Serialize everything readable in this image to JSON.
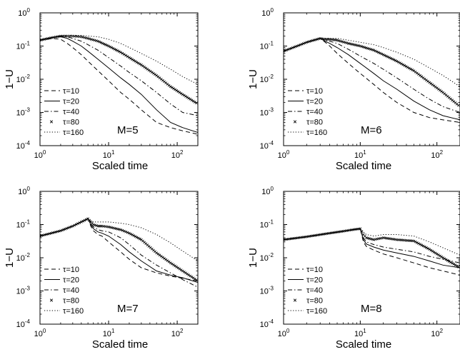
{
  "chart_data": [
    {
      "type": "line",
      "panel_label": "M=5",
      "xlabel": "Scaled time",
      "ylabel": "1−U",
      "xscale": "log",
      "yscale": "log",
      "xlim": [
        1,
        200
      ],
      "ylim": [
        0.0001,
        1
      ],
      "xticks": [
        "10^0",
        "10^1",
        "10^2"
      ],
      "yticks": [
        "10^-4",
        "10^-3",
        "10^-2",
        "10^-1",
        "10^0"
      ],
      "legend": "bottom-left",
      "series": [
        {
          "name": "τ=10",
          "style": "dashed",
          "x": [
            1,
            1.5,
            2,
            2.5,
            3,
            4,
            5,
            7,
            10,
            15,
            20,
            30,
            50,
            80,
            120,
            200
          ],
          "y": [
            0.15,
            0.17,
            0.16,
            0.12,
            0.09,
            0.055,
            0.035,
            0.018,
            0.009,
            0.004,
            0.0025,
            0.0012,
            0.0005,
            0.00035,
            0.00028,
            0.00022
          ]
        },
        {
          "name": "τ=20",
          "style": "solid",
          "x": [
            1,
            1.5,
            2,
            2.5,
            3,
            4,
            5,
            7,
            10,
            15,
            20,
            30,
            50,
            80,
            120,
            200
          ],
          "y": [
            0.15,
            0.18,
            0.19,
            0.17,
            0.14,
            0.1,
            0.07,
            0.04,
            0.022,
            0.011,
            0.007,
            0.0035,
            0.0012,
            0.0005,
            0.00035,
            0.00025
          ]
        },
        {
          "name": "τ=40",
          "style": "dashdot",
          "x": [
            1,
            1.5,
            2,
            2.5,
            3,
            4,
            5,
            7,
            10,
            15,
            20,
            30,
            50,
            80,
            120,
            200
          ],
          "y": [
            0.15,
            0.18,
            0.2,
            0.19,
            0.17,
            0.14,
            0.11,
            0.075,
            0.045,
            0.025,
            0.016,
            0.009,
            0.004,
            0.0018,
            0.001,
            0.0008
          ]
        },
        {
          "name": "τ=80",
          "style": "markers",
          "x": [
            1,
            1.5,
            2,
            2.5,
            3,
            4,
            5,
            7,
            10,
            15,
            20,
            30,
            50,
            80,
            120,
            200
          ],
          "y": [
            0.15,
            0.18,
            0.2,
            0.2,
            0.2,
            0.19,
            0.17,
            0.14,
            0.1,
            0.065,
            0.045,
            0.027,
            0.013,
            0.006,
            0.0035,
            0.0018
          ]
        },
        {
          "name": "τ=160",
          "style": "dotted",
          "x": [
            1,
            1.5,
            2,
            2.5,
            3,
            4,
            5,
            7,
            10,
            15,
            20,
            30,
            50,
            80,
            120,
            200
          ],
          "y": [
            0.15,
            0.18,
            0.2,
            0.21,
            0.21,
            0.21,
            0.2,
            0.19,
            0.16,
            0.12,
            0.09,
            0.06,
            0.035,
            0.02,
            0.012,
            0.007
          ]
        }
      ]
    },
    {
      "type": "line",
      "panel_label": "M=6",
      "xlabel": "Scaled time",
      "ylabel": "1−U",
      "xscale": "log",
      "yscale": "log",
      "xlim": [
        1,
        200
      ],
      "ylim": [
        0.0001,
        1
      ],
      "xticks": [
        "10^0",
        "10^1",
        "10^2"
      ],
      "yticks": [
        "10^-4",
        "10^-3",
        "10^-2",
        "10^-1",
        "10^0"
      ],
      "legend": "bottom-left",
      "series": [
        {
          "name": "τ=10",
          "style": "dashed",
          "x": [
            1,
            1.5,
            2,
            3,
            3.5,
            4,
            5,
            7,
            10,
            15,
            20,
            30,
            50,
            80,
            120,
            200
          ],
          "y": [
            0.07,
            0.1,
            0.13,
            0.17,
            0.13,
            0.1,
            0.06,
            0.03,
            0.015,
            0.007,
            0.004,
            0.002,
            0.001,
            0.0007,
            0.0006,
            0.0005
          ]
        },
        {
          "name": "τ=20",
          "style": "solid",
          "x": [
            1,
            1.5,
            2,
            3,
            3.5,
            4,
            5,
            7,
            10,
            15,
            20,
            30,
            50,
            80,
            120,
            200
          ],
          "y": [
            0.07,
            0.1,
            0.13,
            0.17,
            0.14,
            0.12,
            0.09,
            0.055,
            0.03,
            0.015,
            0.009,
            0.005,
            0.0022,
            0.0012,
            0.0008,
            0.0006
          ]
        },
        {
          "name": "τ=40",
          "style": "dashdot",
          "x": [
            1,
            1.5,
            2,
            3,
            3.5,
            4,
            5,
            7,
            10,
            15,
            20,
            30,
            50,
            80,
            120,
            200
          ],
          "y": [
            0.07,
            0.1,
            0.13,
            0.17,
            0.15,
            0.14,
            0.12,
            0.08,
            0.05,
            0.03,
            0.02,
            0.011,
            0.005,
            0.0025,
            0.0015,
            0.001
          ]
        },
        {
          "name": "τ=80",
          "style": "markers",
          "x": [
            1,
            1.5,
            2,
            3,
            3.5,
            4,
            5,
            7,
            10,
            15,
            20,
            30,
            50,
            80,
            120,
            200
          ],
          "y": [
            0.07,
            0.1,
            0.13,
            0.17,
            0.16,
            0.16,
            0.15,
            0.12,
            0.1,
            0.075,
            0.055,
            0.035,
            0.018,
            0.008,
            0.004,
            0.0015
          ]
        },
        {
          "name": "τ=160",
          "style": "dotted",
          "x": [
            1,
            1.5,
            2,
            3,
            3.5,
            4,
            5,
            7,
            10,
            15,
            20,
            30,
            50,
            80,
            120,
            200
          ],
          "y": [
            0.07,
            0.1,
            0.13,
            0.17,
            0.17,
            0.17,
            0.17,
            0.15,
            0.13,
            0.11,
            0.09,
            0.065,
            0.04,
            0.022,
            0.013,
            0.006
          ]
        }
      ]
    },
    {
      "type": "line",
      "panel_label": "M=7",
      "xlabel": "Scaled time",
      "ylabel": "1−U",
      "xscale": "log",
      "yscale": "log",
      "xlim": [
        1,
        200
      ],
      "ylim": [
        0.0001,
        1
      ],
      "xticks": [
        "10^0",
        "10^1",
        "10^2"
      ],
      "yticks": [
        "10^-4",
        "10^-3",
        "10^-2",
        "10^-1",
        "10^0"
      ],
      "legend": "bottom-left",
      "series": [
        {
          "name": "τ=10",
          "style": "dashed",
          "x": [
            1,
            2,
            3,
            4,
            5,
            5.5,
            6,
            7,
            8,
            10,
            15,
            20,
            30,
            50,
            80,
            120,
            200
          ],
          "y": [
            0.045,
            0.065,
            0.09,
            0.12,
            0.15,
            0.09,
            0.065,
            0.05,
            0.045,
            0.03,
            0.015,
            0.009,
            0.005,
            0.0035,
            0.0028,
            0.0024,
            0.002
          ]
        },
        {
          "name": "τ=20",
          "style": "solid",
          "x": [
            1,
            2,
            3,
            4,
            5,
            5.5,
            6,
            7,
            8,
            10,
            15,
            20,
            30,
            50,
            80,
            120,
            200
          ],
          "y": [
            0.045,
            0.065,
            0.09,
            0.12,
            0.15,
            0.1,
            0.075,
            0.06,
            0.055,
            0.045,
            0.025,
            0.015,
            0.008,
            0.004,
            0.003,
            0.0025,
            0.0018
          ]
        },
        {
          "name": "τ=40",
          "style": "dashdot",
          "x": [
            1,
            2,
            3,
            4,
            5,
            5.5,
            6,
            7,
            8,
            10,
            15,
            20,
            30,
            50,
            80,
            120,
            200
          ],
          "y": [
            0.045,
            0.065,
            0.09,
            0.12,
            0.15,
            0.11,
            0.085,
            0.07,
            0.065,
            0.06,
            0.04,
            0.025,
            0.012,
            0.006,
            0.0035,
            0.0022,
            0.0013
          ]
        },
        {
          "name": "τ=80",
          "style": "markers",
          "x": [
            1,
            2,
            3,
            4,
            5,
            5.5,
            6,
            7,
            8,
            10,
            15,
            20,
            30,
            50,
            80,
            120,
            200
          ],
          "y": [
            0.045,
            0.065,
            0.09,
            0.12,
            0.15,
            0.12,
            0.1,
            0.09,
            0.09,
            0.085,
            0.07,
            0.055,
            0.035,
            0.014,
            0.007,
            0.004,
            0.002
          ]
        },
        {
          "name": "τ=160",
          "style": "dotted",
          "x": [
            1,
            2,
            3,
            4,
            5,
            5.5,
            6,
            7,
            8,
            10,
            15,
            20,
            30,
            50,
            80,
            120,
            200
          ],
          "y": [
            0.045,
            0.065,
            0.09,
            0.12,
            0.15,
            0.13,
            0.12,
            0.12,
            0.12,
            0.12,
            0.11,
            0.1,
            0.08,
            0.05,
            0.028,
            0.016,
            0.008
          ]
        }
      ]
    },
    {
      "type": "line",
      "panel_label": "M=8",
      "xlabel": "Scaled time",
      "ylabel": "1−U",
      "xscale": "log",
      "yscale": "log",
      "xlim": [
        1,
        200
      ],
      "ylim": [
        0.0001,
        1
      ],
      "xticks": [
        "10^0",
        "10^1",
        "10^2"
      ],
      "yticks": [
        "10^-4",
        "10^-3",
        "10^-2",
        "10^-1",
        "10^0"
      ],
      "legend": "bottom-left",
      "series": [
        {
          "name": "τ=10",
          "style": "dashed",
          "x": [
            1,
            2,
            4,
            6,
            8,
            10,
            11,
            12,
            15,
            20,
            30,
            50,
            80,
            120,
            200
          ],
          "y": [
            0.035,
            0.043,
            0.055,
            0.063,
            0.07,
            0.075,
            0.03,
            0.022,
            0.017,
            0.013,
            0.01,
            0.007,
            0.005,
            0.004,
            0.003
          ]
        },
        {
          "name": "τ=20",
          "style": "solid",
          "x": [
            1,
            2,
            4,
            6,
            8,
            10,
            11,
            12,
            15,
            20,
            30,
            50,
            80,
            120,
            200
          ],
          "y": [
            0.035,
            0.043,
            0.055,
            0.063,
            0.07,
            0.075,
            0.035,
            0.026,
            0.021,
            0.017,
            0.014,
            0.011,
            0.008,
            0.006,
            0.005
          ]
        },
        {
          "name": "τ=40",
          "style": "dashdot",
          "x": [
            1,
            2,
            4,
            6,
            8,
            10,
            11,
            12,
            15,
            20,
            30,
            50,
            80,
            120,
            200
          ],
          "y": [
            0.035,
            0.043,
            0.055,
            0.063,
            0.07,
            0.075,
            0.04,
            0.03,
            0.025,
            0.021,
            0.018,
            0.015,
            0.011,
            0.009,
            0.007
          ]
        },
        {
          "name": "τ=80",
          "style": "markers",
          "x": [
            1,
            2,
            4,
            6,
            8,
            10,
            11,
            12,
            15,
            20,
            30,
            50,
            80,
            120,
            200
          ],
          "y": [
            0.035,
            0.043,
            0.055,
            0.063,
            0.07,
            0.075,
            0.05,
            0.04,
            0.035,
            0.04,
            0.035,
            0.032,
            0.018,
            0.01,
            0.005
          ]
        },
        {
          "name": "τ=160",
          "style": "dotted",
          "x": [
            1,
            2,
            4,
            6,
            8,
            10,
            11,
            12,
            15,
            20,
            30,
            50,
            80,
            120,
            200
          ],
          "y": [
            0.035,
            0.043,
            0.055,
            0.063,
            0.07,
            0.075,
            0.06,
            0.05,
            0.045,
            0.05,
            0.05,
            0.045,
            0.03,
            0.02,
            0.012
          ]
        }
      ]
    }
  ]
}
